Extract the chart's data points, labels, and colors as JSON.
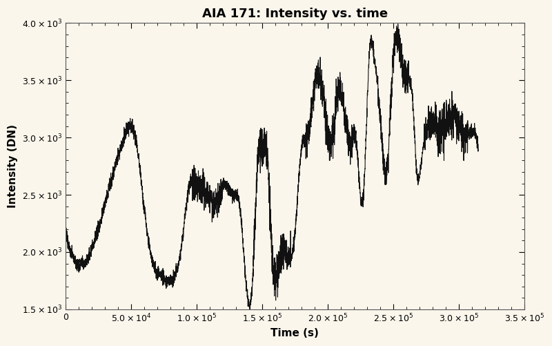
{
  "title": "AIA 171: Intensity vs. time",
  "xlabel": "Time (s)",
  "ylabel": "Intensity (DN)",
  "xlim": [
    0,
    350000
  ],
  "ylim": [
    1500,
    4000
  ],
  "xticks": [
    0,
    50000,
    100000,
    150000,
    200000,
    250000,
    300000,
    350000
  ],
  "yticks": [
    1500,
    2000,
    2500,
    3000,
    3500,
    4000
  ],
  "background_color": "#faf6ec",
  "line_color": "#111111",
  "line_width": 0.8,
  "title_fontsize": 13,
  "label_fontsize": 11,
  "tick_fontsize": 9
}
